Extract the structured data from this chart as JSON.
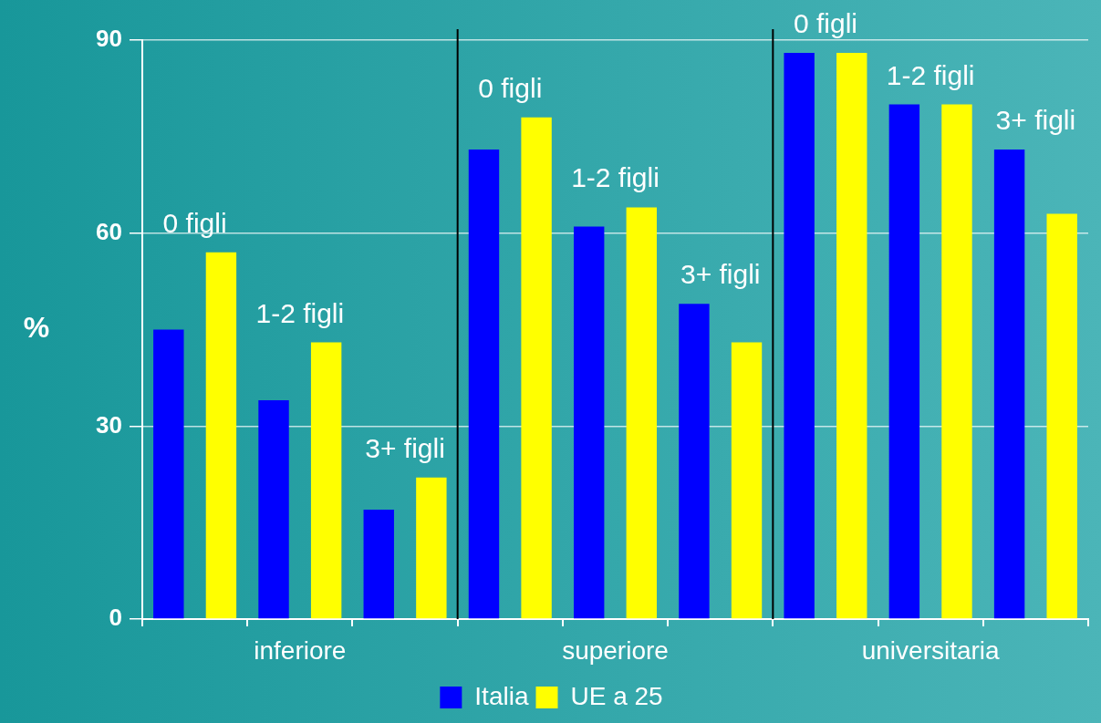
{
  "chart_data": {
    "type": "bar",
    "categories": [
      "0 figli",
      "1-2 figli",
      "3+ figli",
      "0 figli",
      "1-2 figli",
      "3+ figli",
      "0 figli",
      "1-2 figli",
      "3+ figli"
    ],
    "series": [
      {
        "name": "Italia",
        "color": "#0000ff",
        "values": [
          45,
          34,
          17,
          73,
          61,
          49,
          88,
          80,
          73
        ]
      },
      {
        "name": "UE a 25",
        "color": "#ffff00",
        "values": [
          57,
          43,
          22,
          78,
          64,
          43,
          88,
          80,
          63
        ]
      }
    ],
    "ylabel": "%",
    "ylim": [
      0,
      90
    ],
    "yticks": [
      0,
      30,
      60,
      90
    ],
    "annotations": [
      "inferiore",
      "superiore",
      "universitaria"
    ],
    "grid": "y",
    "legend": "bottom"
  }
}
